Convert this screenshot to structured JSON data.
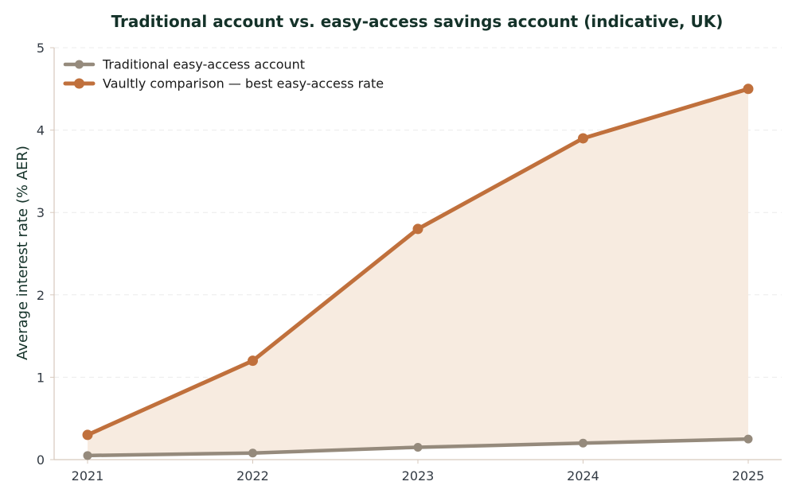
{
  "chart_data": {
    "type": "line",
    "title": "Traditional account vs. easy-access savings account (indicative, UK)",
    "xlabel": "",
    "ylabel": "Average interest rate (% AER)",
    "categories": [
      "2021",
      "2022",
      "2023",
      "2024",
      "2025"
    ],
    "ylim": [
      0,
      5
    ],
    "yticks": [
      "0",
      "1",
      "2",
      "3",
      "4",
      "5"
    ],
    "grid": true,
    "legend_position": "top-left",
    "series": [
      {
        "name": "Traditional easy-access account",
        "values": [
          0.05,
          0.08,
          0.15,
          0.2,
          0.25
        ],
        "color": "#958a7c"
      },
      {
        "name": "Vaultly comparison — best easy-access rate",
        "values": [
          0.3,
          1.2,
          2.8,
          3.9,
          4.5
        ],
        "color": "#c0703c"
      }
    ],
    "fill_between": {
      "color": "#f7ebe0"
    }
  }
}
